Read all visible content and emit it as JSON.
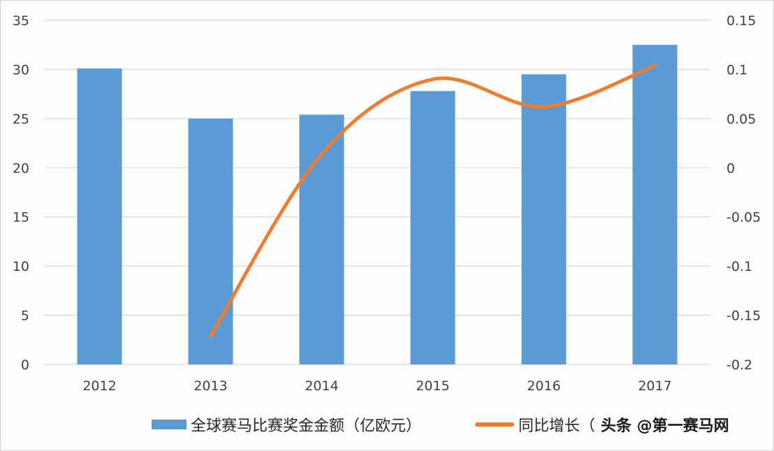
{
  "chart_data": {
    "type": "bar+line",
    "title": "",
    "categories": [
      "2012",
      "2013",
      "2014",
      "2015",
      "2016",
      "2017"
    ],
    "series": [
      {
        "name": "全球赛马比赛奖金金额（亿欧元）",
        "type": "bar",
        "axis": "left",
        "color": "#5b9bd5",
        "values": [
          30.1,
          25.0,
          25.4,
          27.8,
          29.5,
          32.5
        ]
      },
      {
        "name": "同比增长（",
        "type": "line",
        "axis": "right",
        "color": "#ed7d31",
        "smooth": true,
        "values": [
          null,
          -0.171,
          0.014,
          0.09,
          0.062,
          0.104
        ]
      }
    ],
    "left_axis": {
      "ticks": [
        "0",
        "5",
        "10",
        "15",
        "20",
        "25",
        "30",
        "35"
      ],
      "range": [
        0,
        35
      ]
    },
    "right_axis": {
      "ticks": [
        "-0.2",
        "-0.15",
        "-0.1",
        "-0.05",
        "0",
        "0.05",
        "0.1",
        "0.15"
      ],
      "range": [
        -0.2,
        0.15
      ]
    },
    "grid": true,
    "legend_position": "bottom"
  },
  "legend": {
    "bar_label": "全球赛马比赛奖金金额（亿欧元）",
    "line_label": "同比增长（",
    "watermark": "头条 @第一赛马网"
  }
}
